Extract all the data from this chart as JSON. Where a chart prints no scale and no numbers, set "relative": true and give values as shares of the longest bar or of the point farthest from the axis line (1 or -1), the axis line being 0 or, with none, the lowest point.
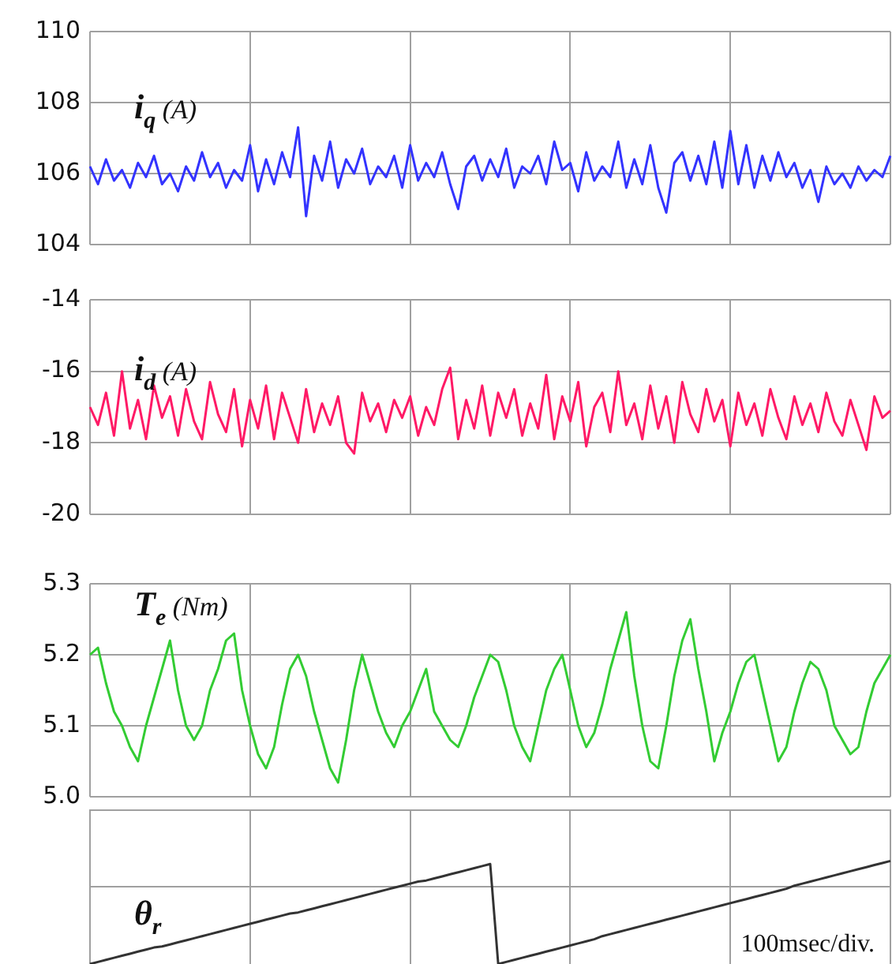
{
  "chart_data": [
    {
      "type": "line",
      "title": "i$_{q}$ (A)",
      "categories": [
        null,
        null,
        null,
        null,
        null,
        null,
        null,
        null,
        null,
        null,
        null,
        null,
        null,
        null,
        null,
        null,
        null,
        null,
        null,
        null,
        null,
        null,
        null,
        null,
        null,
        null,
        null,
        null,
        null,
        null,
        null,
        null,
        null,
        null,
        null,
        null,
        null,
        null,
        null,
        null,
        null,
        null,
        null,
        null,
        null,
        null,
        null,
        null,
        null,
        null,
        null,
        null,
        null,
        null,
        null,
        null,
        null,
        null,
        null,
        null,
        null,
        null,
        null,
        null,
        null,
        null,
        null,
        null,
        null,
        null,
        null,
        null,
        null,
        null,
        null,
        null,
        null,
        null,
        null,
        null,
        null,
        null,
        null,
        null,
        null,
        null,
        null,
        null,
        null,
        null,
        null,
        null,
        null,
        null,
        null,
        null,
        null,
        null,
        null,
        null,
        null
      ],
      "series": [
        {
          "color": "#3333ff",
          "values": [
            106.2,
            105.7,
            106.4,
            105.8,
            106.1,
            105.6,
            106.3,
            105.9,
            106.5,
            105.7,
            106.0,
            105.5,
            106.2,
            105.8,
            106.6,
            105.9,
            106.3,
            105.6,
            106.1,
            105.8,
            106.8,
            105.5,
            106.4,
            105.7,
            106.6,
            105.9,
            107.3,
            104.8,
            106.5,
            105.8,
            106.9,
            105.6,
            106.4,
            106.0,
            106.7,
            105.7,
            106.2,
            105.9,
            106.5,
            105.6,
            106.8,
            105.8,
            106.3,
            105.9,
            106.6,
            105.7,
            105.0,
            106.2,
            106.5,
            105.8,
            106.4,
            105.9,
            106.7,
            105.6,
            106.2,
            106.0,
            106.5,
            105.7,
            106.9,
            106.1,
            106.3,
            105.5,
            106.6,
            105.8,
            106.2,
            105.9,
            106.9,
            105.6,
            106.4,
            105.7,
            106.8,
            105.6,
            104.9,
            106.3,
            106.6,
            105.8,
            106.5,
            105.7,
            106.9,
            105.6,
            107.2,
            105.7,
            106.8,
            105.6,
            106.5,
            105.8,
            106.6,
            105.9,
            106.3,
            105.6,
            106.1,
            105.2,
            106.2,
            105.7,
            106.0,
            105.6,
            106.2,
            105.8,
            106.1,
            105.9,
            106.5
          ]
        }
      ],
      "ylim": [
        104,
        110
      ],
      "yticks": [
        104,
        106,
        108,
        110
      ],
      "grid": true,
      "tick_labels": "y",
      "marker": "none"
    },
    {
      "type": "line",
      "title": "i$_{d}$ (A)",
      "categories": [
        null,
        null,
        null,
        null,
        null,
        null,
        null,
        null,
        null,
        null,
        null,
        null,
        null,
        null,
        null,
        null,
        null,
        null,
        null,
        null,
        null,
        null,
        null,
        null,
        null,
        null,
        null,
        null,
        null,
        null,
        null,
        null,
        null,
        null,
        null,
        null,
        null,
        null,
        null,
        null,
        null,
        null,
        null,
        null,
        null,
        null,
        null,
        null,
        null,
        null,
        null,
        null,
        null,
        null,
        null,
        null,
        null,
        null,
        null,
        null,
        null,
        null,
        null,
        null,
        null,
        null,
        null,
        null,
        null,
        null,
        null,
        null,
        null,
        null,
        null,
        null,
        null,
        null,
        null,
        null,
        null,
        null,
        null,
        null,
        null,
        null,
        null,
        null,
        null,
        null,
        null,
        null,
        null,
        null,
        null,
        null,
        null,
        null,
        null,
        null,
        null
      ],
      "series": [
        {
          "color": "#ff1a66",
          "values": [
            -17.0,
            -17.5,
            -16.6,
            -17.8,
            -16.0,
            -17.6,
            -16.8,
            -17.9,
            -16.4,
            -17.3,
            -16.7,
            -17.8,
            -16.5,
            -17.4,
            -17.9,
            -16.3,
            -17.2,
            -17.7,
            -16.5,
            -18.1,
            -16.8,
            -17.6,
            -16.4,
            -17.9,
            -16.6,
            -17.3,
            -18.0,
            -16.5,
            -17.7,
            -16.9,
            -17.5,
            -16.7,
            -18.0,
            -18.3,
            -16.6,
            -17.4,
            -16.9,
            -17.7,
            -16.8,
            -17.3,
            -16.7,
            -17.8,
            -17.0,
            -17.5,
            -16.5,
            -15.9,
            -17.9,
            -16.8,
            -17.6,
            -16.4,
            -17.8,
            -16.6,
            -17.3,
            -16.5,
            -17.8,
            -16.9,
            -17.6,
            -16.1,
            -17.9,
            -16.7,
            -17.4,
            -16.3,
            -18.1,
            -17.0,
            -16.6,
            -17.7,
            -16.0,
            -17.5,
            -16.9,
            -17.9,
            -16.4,
            -17.6,
            -16.7,
            -18.0,
            -16.3,
            -17.2,
            -17.7,
            -16.5,
            -17.4,
            -16.8,
            -18.1,
            -16.6,
            -17.5,
            -16.9,
            -17.8,
            -16.5,
            -17.3,
            -17.9,
            -16.7,
            -17.5,
            -16.9,
            -17.7,
            -16.6,
            -17.4,
            -17.8,
            -16.8,
            -17.5,
            -18.2,
            -16.7,
            -17.3,
            -17.1
          ]
        }
      ],
      "ylim": [
        -20,
        -14
      ],
      "yticks": [
        -20,
        -18,
        -16,
        -14
      ],
      "grid": true,
      "tick_labels": "y",
      "marker": "none"
    },
    {
      "type": "line",
      "title": "T$_{e}$ (Nm)",
      "categories": [
        null,
        null,
        null,
        null,
        null,
        null,
        null,
        null,
        null,
        null,
        null,
        null,
        null,
        null,
        null,
        null,
        null,
        null,
        null,
        null,
        null,
        null,
        null,
        null,
        null,
        null,
        null,
        null,
        null,
        null,
        null,
        null,
        null,
        null,
        null,
        null,
        null,
        null,
        null,
        null,
        null,
        null,
        null,
        null,
        null,
        null,
        null,
        null,
        null,
        null,
        null,
        null,
        null,
        null,
        null,
        null,
        null,
        null,
        null,
        null,
        null,
        null,
        null,
        null,
        null,
        null,
        null,
        null,
        null,
        null,
        null,
        null,
        null,
        null,
        null,
        null,
        null,
        null,
        null,
        null,
        null,
        null,
        null,
        null,
        null,
        null,
        null,
        null,
        null,
        null,
        null,
        null,
        null,
        null,
        null,
        null,
        null,
        null,
        null,
        null,
        null
      ],
      "series": [
        {
          "color": "#33cc33",
          "values": [
            5.2,
            5.21,
            5.16,
            5.12,
            5.1,
            5.07,
            5.05,
            5.1,
            5.14,
            5.18,
            5.22,
            5.15,
            5.1,
            5.08,
            5.1,
            5.15,
            5.18,
            5.22,
            5.23,
            5.15,
            5.1,
            5.06,
            5.04,
            5.07,
            5.13,
            5.18,
            5.2,
            5.17,
            5.12,
            5.08,
            5.04,
            5.02,
            5.08,
            5.15,
            5.2,
            5.16,
            5.12,
            5.09,
            5.07,
            5.1,
            5.12,
            5.15,
            5.18,
            5.12,
            5.1,
            5.08,
            5.07,
            5.1,
            5.14,
            5.17,
            5.2,
            5.19,
            5.15,
            5.1,
            5.07,
            5.05,
            5.1,
            5.15,
            5.18,
            5.2,
            5.15,
            5.1,
            5.07,
            5.09,
            5.13,
            5.18,
            5.22,
            5.26,
            5.17,
            5.1,
            5.05,
            5.04,
            5.1,
            5.17,
            5.22,
            5.25,
            5.18,
            5.12,
            5.05,
            5.09,
            5.12,
            5.16,
            5.19,
            5.2,
            5.15,
            5.1,
            5.05,
            5.07,
            5.12,
            5.16,
            5.19,
            5.18,
            5.15,
            5.1,
            5.08,
            5.06,
            5.07,
            5.12,
            5.16,
            5.18,
            5.2
          ]
        }
      ],
      "ylim": [
        5.0,
        5.3
      ],
      "yticks": [
        {
          "value": 5.0,
          "label": "5.0"
        },
        5.1,
        5.2,
        5.3
      ],
      "grid": true,
      "tick_labels": "y",
      "marker": "none"
    },
    {
      "type": "line",
      "title": "θ$_{r}$",
      "relative": true,
      "categories": [
        null,
        null,
        null,
        null,
        null,
        null,
        null,
        null,
        null,
        null,
        null,
        null,
        null,
        null,
        null,
        null,
        null,
        null,
        null,
        null,
        null,
        null,
        null,
        null,
        null,
        null,
        null,
        null,
        null,
        null,
        null,
        null,
        null,
        null,
        null,
        null,
        null,
        null,
        null,
        null,
        null,
        null,
        null,
        null,
        null,
        null,
        null,
        null,
        null,
        null,
        null,
        null,
        null,
        null,
        null,
        null,
        null,
        null,
        null,
        null,
        null,
        null,
        null,
        null,
        null,
        null,
        null,
        null,
        null,
        null,
        null,
        null,
        null,
        null,
        null,
        null,
        null,
        null,
        null,
        null,
        null,
        null,
        null,
        null,
        null,
        null,
        null,
        null,
        null,
        null,
        null,
        null,
        null,
        null,
        null,
        null,
        null,
        null,
        null,
        null,
        null
      ],
      "series": [
        {
          "color": "#333333",
          "values": [
            0,
            0.02,
            0.04,
            0.06,
            0.08,
            0.1,
            0.12,
            0.14,
            0.16,
            0.17,
            0.19,
            0.21,
            0.23,
            0.25,
            0.27,
            0.29,
            0.31,
            0.33,
            0.35,
            0.37,
            0.39,
            0.41,
            0.43,
            0.45,
            0.47,
            0.49,
            0.5,
            0.52,
            0.54,
            0.56,
            0.58,
            0.6,
            0.62,
            0.64,
            0.66,
            0.68,
            0.7,
            0.72,
            0.74,
            0.76,
            0.78,
            0.8,
            0.81,
            0.83,
            0.85,
            0.87,
            0.89,
            0.91,
            0.93,
            0.95,
            0.97,
            0,
            0.02,
            0.04,
            0.06,
            0.08,
            0.1,
            0.12,
            0.14,
            0.16,
            0.18,
            0.2,
            0.22,
            0.24,
            0.27,
            0.29,
            0.31,
            0.33,
            0.35,
            0.37,
            0.39,
            0.41,
            0.43,
            0.45,
            0.47,
            0.49,
            0.51,
            0.53,
            0.55,
            0.57,
            0.59,
            0.61,
            0.63,
            0.65,
            0.67,
            0.69,
            0.71,
            0.73,
            0.76,
            0.78,
            0.8,
            0.82,
            0.84,
            0.86,
            0.88,
            0.9,
            0.92,
            0.94,
            0.96,
            0.98,
            1.0
          ]
        }
      ],
      "grid": true,
      "tick_labels": false,
      "marker": "none",
      "annotations": [
        "100msec/div."
      ]
    }
  ]
}
